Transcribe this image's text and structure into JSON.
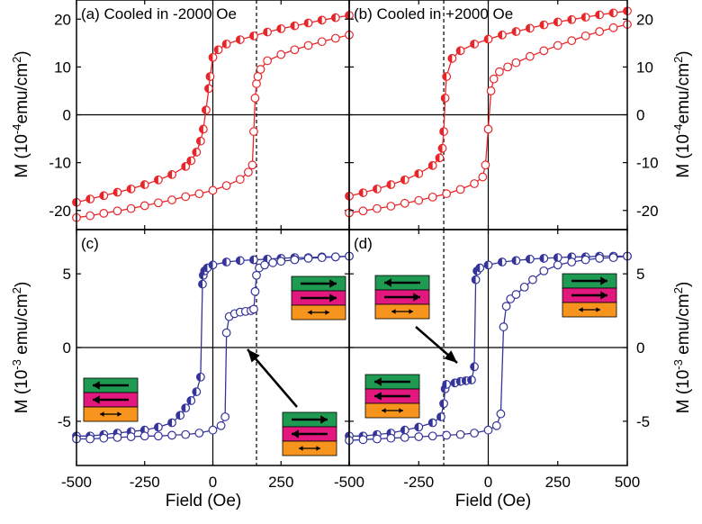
{
  "colors": {
    "red": "#e8262a",
    "blue": "#34349a",
    "green": "#1f9a52",
    "magenta": "#e2187f",
    "orange": "#f7941d",
    "black": "#000000"
  },
  "axes_text": {
    "xlabel_left": "Field (Oe)",
    "xlabel_right": "Field (Oe)",
    "ylabel_top_left": "M (10^-4emu/cm^2)",
    "ylabel_top_right": "M (10^-4emu/cm^2)",
    "ylabel_bottom_left": "M (10^-3 emu/cm^2)",
    "ylabel_bottom_right": "M (10^-3 emu/cm^2)"
  },
  "chart_data": [
    {
      "panel": "a",
      "type": "scatter",
      "title": "(a) Cooled in -2000 Oe",
      "xlim": [
        -500,
        500
      ],
      "ylim": [
        -24,
        24
      ],
      "xticks": [
        -500,
        -250,
        0,
        250,
        500
      ],
      "xtick_labels": [
        "-500",
        "-250",
        "0",
        "250",
        "500"
      ],
      "yticks": [
        -20,
        -10,
        0,
        10,
        20
      ],
      "ytick_labels": [
        "-20",
        "-10",
        "0",
        "10",
        "20"
      ],
      "vline_solid": 0,
      "vline_dashed": 160,
      "series": [
        {
          "style": "half-filled",
          "x": [
            -500,
            -450,
            -400,
            -350,
            -300,
            -250,
            -200,
            -150,
            -100,
            -80,
            -60,
            -45,
            -35,
            -25,
            -15,
            -10,
            0,
            20,
            50,
            100,
            150,
            200,
            250,
            300,
            350,
            400,
            450,
            500
          ],
          "y": [
            -18.3,
            -17.6,
            -16.9,
            -16.2,
            -15.5,
            -14.6,
            -13.6,
            -12.5,
            -10.8,
            -9.6,
            -7.8,
            -5.5,
            -3.0,
            1.0,
            5.5,
            8.0,
            12.0,
            13.6,
            14.8,
            15.7,
            16.5,
            17.3,
            18.0,
            18.6,
            19.2,
            19.8,
            20.3,
            20.8
          ]
        },
        {
          "style": "open",
          "x": [
            -500,
            -450,
            -400,
            -350,
            -300,
            -250,
            -200,
            -150,
            -100,
            -50,
            0,
            50,
            100,
            130,
            145,
            150,
            155,
            160,
            165,
            175,
            200,
            250,
            300,
            350,
            400,
            450,
            500
          ],
          "y": [
            -21.5,
            -21.1,
            -20.6,
            -20.1,
            -19.6,
            -19.0,
            -18.4,
            -17.8,
            -17.1,
            -16.5,
            -15.8,
            -14.8,
            -13.5,
            -12.0,
            -10.5,
            -3.5,
            3.5,
            6.5,
            8.0,
            9.5,
            11.3,
            12.6,
            13.6,
            14.5,
            15.3,
            16.0,
            16.7
          ]
        }
      ]
    },
    {
      "panel": "b",
      "type": "scatter",
      "title": "(b) Cooled in +2000 Oe",
      "xlim": [
        -500,
        500
      ],
      "ylim": [
        -24,
        24
      ],
      "xticks": [
        -500,
        -250,
        0,
        250,
        500
      ],
      "xtick_labels": [
        "-500",
        "-250",
        "0",
        "250",
        "500"
      ],
      "yticks": [
        -20,
        -10,
        0,
        10,
        20
      ],
      "ytick_labels": [
        "-20",
        "-10",
        "0",
        "10",
        "20"
      ],
      "vline_solid": 0,
      "vline_dashed": -160,
      "series": [
        {
          "style": "half-filled",
          "x": [
            -500,
            -450,
            -400,
            -350,
            -300,
            -250,
            -200,
            -175,
            -165,
            -160,
            -155,
            -150,
            -130,
            -100,
            -50,
            0,
            50,
            100,
            150,
            200,
            250,
            300,
            350,
            400,
            450,
            500
          ],
          "y": [
            -17.0,
            -16.3,
            -15.5,
            -14.6,
            -13.6,
            -12.3,
            -10.6,
            -9.0,
            -7.0,
            -3.5,
            3.5,
            8.0,
            11.8,
            13.4,
            14.8,
            15.8,
            16.7,
            17.4,
            18.1,
            18.8,
            19.4,
            19.9,
            20.4,
            20.9,
            21.3,
            21.7
          ]
        },
        {
          "style": "open",
          "x": [
            -500,
            -450,
            -400,
            -350,
            -300,
            -250,
            -200,
            -150,
            -100,
            -50,
            -20,
            -10,
            0,
            10,
            20,
            40,
            70,
            100,
            150,
            200,
            250,
            300,
            350,
            400,
            450,
            500
          ],
          "y": [
            -20.5,
            -20.1,
            -19.6,
            -19.1,
            -18.5,
            -17.9,
            -17.2,
            -16.5,
            -15.6,
            -14.4,
            -13.0,
            -10.5,
            -3.0,
            5.0,
            7.5,
            9.0,
            10.0,
            10.9,
            12.2,
            13.4,
            14.5,
            15.5,
            16.5,
            17.4,
            18.2,
            18.9
          ]
        }
      ]
    },
    {
      "panel": "c",
      "type": "scatter",
      "title": "(c)",
      "xlim": [
        -500,
        500
      ],
      "ylim": [
        -8,
        8
      ],
      "xticks": [
        -500,
        -250,
        0,
        250,
        500
      ],
      "xtick_labels": [
        "-500",
        "-250",
        "0",
        "250",
        "500"
      ],
      "yticks": [
        -5,
        0,
        5
      ],
      "ytick_labels": [
        "-5",
        "0",
        "5"
      ],
      "vline_solid": 0,
      "vline_dashed": 160,
      "series": [
        {
          "style": "half-filled",
          "x": [
            -500,
            -450,
            -400,
            -350,
            -300,
            -250,
            -200,
            -150,
            -120,
            -100,
            -80,
            -60,
            -45,
            -38,
            -35,
            -30,
            -20,
            0,
            50,
            100,
            150,
            200,
            250,
            300,
            350,
            400,
            450,
            500
          ],
          "y": [
            -6.0,
            -6.0,
            -5.9,
            -5.8,
            -5.7,
            -5.6,
            -5.4,
            -5.1,
            -4.6,
            -4.1,
            -3.6,
            -3.0,
            -2.0,
            4.3,
            4.9,
            5.2,
            5.4,
            5.6,
            5.8,
            5.9,
            5.95,
            6.0,
            6.05,
            6.1,
            6.1,
            6.15,
            6.15,
            6.2
          ]
        },
        {
          "style": "open",
          "x": [
            -500,
            -450,
            -400,
            -350,
            -300,
            -250,
            -200,
            -150,
            -100,
            -50,
            0,
            30,
            45,
            50,
            60,
            80,
            100,
            120,
            140,
            150,
            155,
            160,
            170,
            190,
            220,
            250,
            300,
            350,
            400,
            450,
            500
          ],
          "y": [
            -6.2,
            -6.2,
            -6.15,
            -6.1,
            -6.05,
            -6.0,
            -6.0,
            -5.95,
            -5.9,
            -5.8,
            -5.6,
            -5.3,
            -4.7,
            1.0,
            2.1,
            2.3,
            2.4,
            2.45,
            2.5,
            2.6,
            3.8,
            4.9,
            5.4,
            5.6,
            5.75,
            5.85,
            5.95,
            6.05,
            6.1,
            6.15,
            6.2
          ]
        }
      ]
    },
    {
      "panel": "d",
      "type": "scatter",
      "title": "(d)",
      "xlim": [
        -500,
        500
      ],
      "ylim": [
        -8,
        8
      ],
      "xticks": [
        -500,
        -250,
        0,
        250,
        500
      ],
      "xtick_labels": [
        "-500",
        "-250",
        "0",
        "250",
        "500"
      ],
      "yticks": [
        -5,
        0,
        5
      ],
      "ytick_labels": [
        "-5",
        "0",
        "5"
      ],
      "vline_solid": 0,
      "vline_dashed": -160,
      "series": [
        {
          "style": "half-filled",
          "x": [
            -500,
            -450,
            -400,
            -350,
            -300,
            -250,
            -200,
            -170,
            -160,
            -155,
            -150,
            -120,
            -100,
            -80,
            -60,
            -50,
            -45,
            -40,
            -30,
            0,
            50,
            100,
            150,
            200,
            250,
            300,
            350,
            400,
            450,
            500
          ],
          "y": [
            -6.0,
            -6.0,
            -5.9,
            -5.8,
            -5.6,
            -5.4,
            -5.1,
            -4.7,
            -3.8,
            -2.8,
            -2.5,
            -2.4,
            -2.3,
            -2.25,
            -2.2,
            -1.3,
            4.6,
            5.2,
            5.4,
            5.6,
            5.8,
            5.9,
            6.0,
            6.05,
            6.1,
            6.15,
            6.15,
            6.2,
            6.2,
            6.2
          ]
        },
        {
          "style": "open",
          "x": [
            -500,
            -450,
            -400,
            -350,
            -300,
            -250,
            -200,
            -150,
            -100,
            -50,
            0,
            30,
            45,
            55,
            65,
            80,
            100,
            130,
            160,
            200,
            250,
            300,
            350,
            400,
            450,
            500
          ],
          "y": [
            -6.3,
            -6.25,
            -6.2,
            -6.15,
            -6.1,
            -6.05,
            -6.0,
            -5.95,
            -5.9,
            -5.8,
            -5.6,
            -5.3,
            -4.5,
            1.4,
            2.8,
            3.3,
            3.6,
            4.1,
            4.6,
            5.2,
            5.6,
            5.8,
            5.95,
            6.05,
            6.1,
            6.2
          ]
        }
      ]
    }
  ]
}
